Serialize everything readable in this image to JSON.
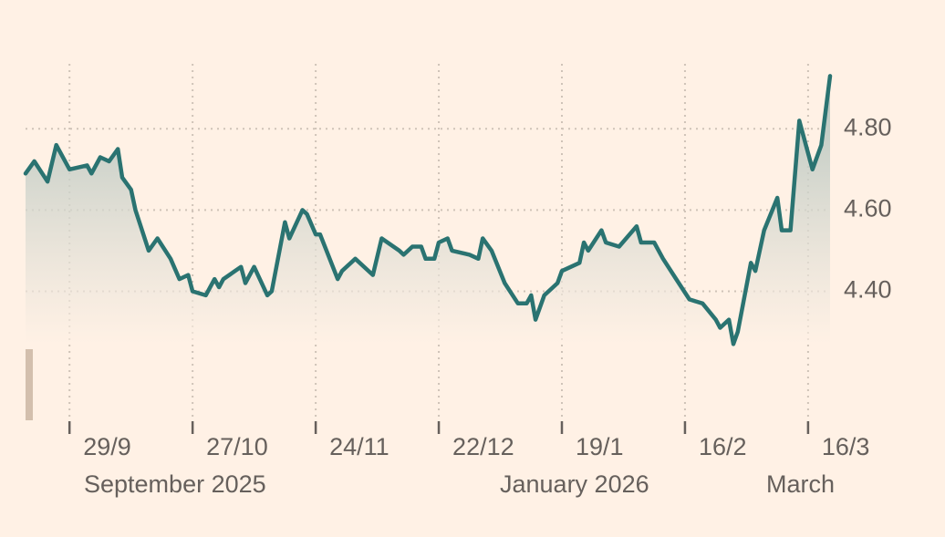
{
  "chart_data": {
    "type": "line",
    "color": "#2a7371",
    "x": [
      "2025-09-19",
      "2025-09-21",
      "2025-09-24",
      "2025-09-26",
      "2025-09-29",
      "2025-10-03",
      "2025-10-04",
      "2025-10-06",
      "2025-10-08",
      "2025-10-10",
      "2025-10-11",
      "2025-10-13",
      "2025-10-14",
      "2025-10-17",
      "2025-10-19",
      "2025-10-22",
      "2025-10-24",
      "2025-10-26",
      "2025-10-27",
      "2025-10-30",
      "2025-11-01",
      "2025-11-02",
      "2025-11-03",
      "2025-11-07",
      "2025-11-08",
      "2025-11-10",
      "2025-11-13",
      "2025-11-14",
      "2025-11-17",
      "2025-11-18",
      "2025-11-21",
      "2025-11-22",
      "2025-11-24",
      "2025-11-25",
      "2025-11-29",
      "2025-11-30",
      "2025-12-03",
      "2025-12-07",
      "2025-12-09",
      "2025-12-13",
      "2025-12-14",
      "2025-12-16",
      "2025-12-18",
      "2025-12-19",
      "2025-12-21",
      "2025-12-22",
      "2025-12-24",
      "2025-12-25",
      "2025-12-29",
      "2025-12-31",
      "2026-01-01",
      "2026-01-03",
      "2026-01-06",
      "2026-01-09",
      "2026-01-11",
      "2026-01-12",
      "2026-01-13",
      "2026-01-15",
      "2026-01-18",
      "2026-01-19",
      "2026-01-23",
      "2026-01-24",
      "2026-01-25",
      "2026-01-28",
      "2026-01-29",
      "2026-02-01",
      "2026-02-05",
      "2026-02-06",
      "2026-02-09",
      "2026-02-11",
      "2026-02-14",
      "2026-02-17",
      "2026-02-20",
      "2026-02-23",
      "2026-02-24",
      "2026-02-26",
      "2026-02-27",
      "2026-02-28",
      "2026-03-03",
      "2026-03-04",
      "2026-03-06",
      "2026-03-09",
      "2026-03-10",
      "2026-03-12",
      "2026-03-14",
      "2026-03-17",
      "2026-03-19",
      "2026-03-21"
    ],
    "values": [
      4.69,
      4.72,
      4.67,
      4.76,
      4.7,
      4.71,
      4.69,
      4.73,
      4.72,
      4.75,
      4.68,
      4.65,
      4.6,
      4.5,
      4.53,
      4.48,
      4.43,
      4.44,
      4.4,
      4.39,
      4.43,
      4.41,
      4.43,
      4.46,
      4.42,
      4.46,
      4.39,
      4.4,
      4.57,
      4.53,
      4.6,
      4.59,
      4.54,
      4.54,
      4.43,
      4.45,
      4.48,
      4.44,
      4.53,
      4.5,
      4.49,
      4.51,
      4.51,
      4.48,
      4.48,
      4.52,
      4.53,
      4.5,
      4.49,
      4.48,
      4.53,
      4.5,
      4.42,
      4.37,
      4.37,
      4.39,
      4.33,
      4.39,
      4.42,
      4.45,
      4.47,
      4.52,
      4.5,
      4.55,
      4.52,
      4.51,
      4.56,
      4.52,
      4.52,
      4.48,
      4.43,
      4.38,
      4.37,
      4.33,
      4.31,
      4.33,
      4.27,
      4.3,
      4.47,
      4.45,
      4.55,
      4.63,
      4.55,
      4.55,
      4.82,
      4.7,
      4.76,
      4.93
    ],
    "xlim": [
      "2025-09-19",
      "2026-03-21"
    ],
    "xticks": [
      {
        "value": "2025-09-29",
        "label": "29/9"
      },
      {
        "value": "2025-10-27",
        "label": "27/10"
      },
      {
        "value": "2025-11-24",
        "label": "24/11"
      },
      {
        "value": "2025-12-22",
        "label": "22/12"
      },
      {
        "value": "2026-01-19",
        "label": "19/1"
      },
      {
        "value": "2026-02-16",
        "label": "16/2"
      },
      {
        "value": "2026-03-16",
        "label": "16/3"
      }
    ],
    "period_labels": [
      "September 2025",
      "January 2026",
      "March"
    ],
    "ylim": [
      4.08,
      4.96
    ],
    "yticks": [
      {
        "value": 4.4,
        "label": "4.40"
      },
      {
        "value": 4.6,
        "label": "4.60"
      },
      {
        "value": 4.8,
        "label": "4.80"
      }
    ],
    "grid": true
  }
}
